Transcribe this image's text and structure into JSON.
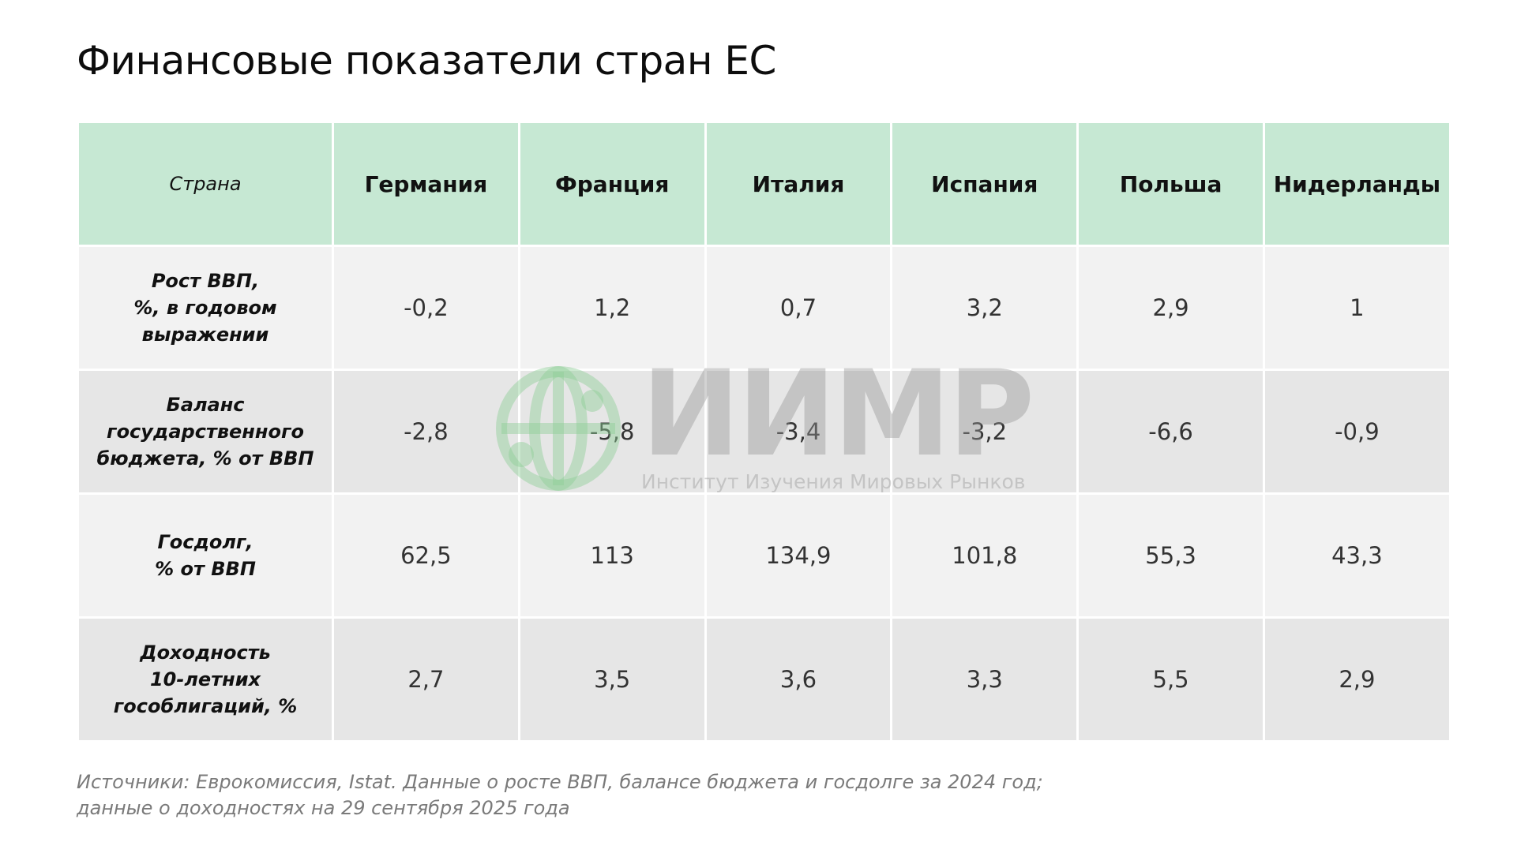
{
  "title": "Финансовые показатели стран ЕС",
  "table": {
    "header": {
      "row_label": "Страна",
      "countries": [
        "Германия",
        "Франция",
        "Италия",
        "Испания",
        "Польша",
        "Нидерланды"
      ]
    },
    "rows": [
      {
        "label_lines": [
          "Рост ВВП,",
          "%, в годовом",
          "выражении"
        ],
        "values": [
          "-0,2",
          "1,2",
          "0,7",
          "3,2",
          "2,9",
          "1"
        ]
      },
      {
        "label_lines": [
          "Баланс",
          "государственного",
          "бюджета, % от ВВП"
        ],
        "values": [
          "-2,8",
          "-5,8",
          "-3,4",
          "-3,2",
          "-6,6",
          "-0,9"
        ]
      },
      {
        "label_lines": [
          "Госдолг,",
          "% от ВВП"
        ],
        "values": [
          "62,5",
          "113",
          "134,9",
          "101,8",
          "55,3",
          "43,3"
        ]
      },
      {
        "label_lines": [
          "Доходность",
          "10-летних",
          "гособлигаций, %"
        ],
        "values": [
          "2,7",
          "3,5",
          "3,6",
          "3,3",
          "5,5",
          "2,9"
        ]
      }
    ]
  },
  "watermark": {
    "name": "ИИМР",
    "subtitle": "Институт Изучения Мировых Рынков",
    "icon": "globe-network-icon"
  },
  "footnote": {
    "lines": [
      "Источники: Еврокомиссия, Istat. Данные о росте ВВП, балансе бюджета и госдолге за 2024 год;",
      "данные о доходностях на 29 сентября 2025 года"
    ]
  },
  "colors": {
    "header_bg": "#c6e8d3",
    "row_light": "#f2f2f2",
    "row_dark": "#e6e6e6",
    "watermark_green": "#8fcf97",
    "footnote_text": "#7a7a7a"
  }
}
